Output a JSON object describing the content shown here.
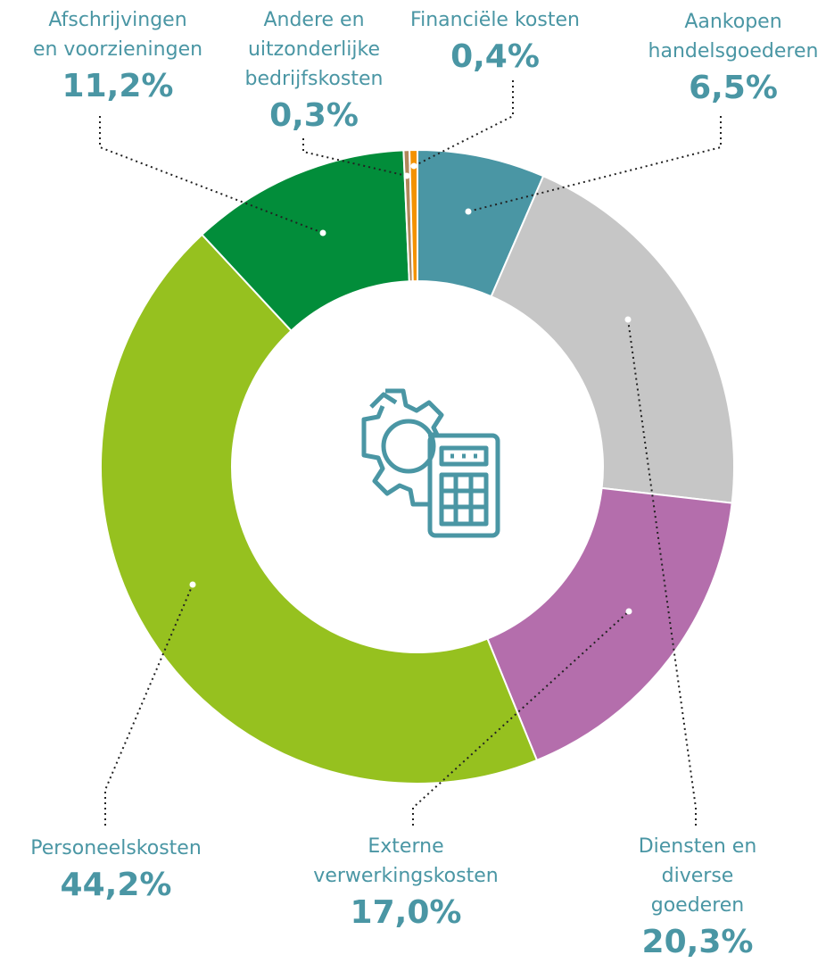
{
  "chart_data": {
    "type": "pie",
    "categories": [
      "Aankopen\nhandelsgoederen",
      "Diensten en\ndiverse goederen",
      "Externe\nverwerkingskosten",
      "Personeelskosten",
      "Afschrijvingen\nen voorzieningen",
      "Andere en\nuitzonderlijke\nbedrijfskosten",
      "Financiële kosten"
    ],
    "values": [
      6.5,
      20.3,
      17.0,
      44.2,
      11.2,
      0.3,
      0.4
    ],
    "value_labels": [
      "6,5%",
      "20,3%",
      "17,0%",
      "44,2%",
      "11,2%",
      "0,3%",
      "0,4%"
    ],
    "colors": [
      "#4a96a4",
      "#c6c6c6",
      "#b46eac",
      "#96c11f",
      "#028d3a",
      "#b0875a",
      "#f39200"
    ]
  }
}
